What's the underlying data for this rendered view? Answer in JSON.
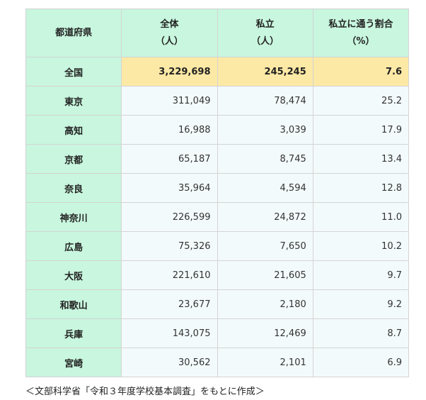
{
  "headers": [
    {
      "l1": "都道府県",
      "l2": ""
    },
    {
      "l1": "全体",
      "l2": "（人）"
    },
    {
      "l1": "私立",
      "l2": "（人）"
    },
    {
      "l1": "私立に通う割合",
      "l2": "（%）"
    }
  ],
  "national": {
    "name": "全国",
    "total": "3,229,698",
    "private": "245,245",
    "ratio": "7.6"
  },
  "rows": [
    {
      "name": "東京",
      "total": "311,049",
      "private": "78,474",
      "ratio": "25.2"
    },
    {
      "name": "高知",
      "total": "16,988",
      "private": "3,039",
      "ratio": "17.9"
    },
    {
      "name": "京都",
      "total": "65,187",
      "private": "8,745",
      "ratio": "13.4"
    },
    {
      "name": "奈良",
      "total": "35,964",
      "private": "4,594",
      "ratio": "12.8"
    },
    {
      "name": "神奈川",
      "total": "226,599",
      "private": "24,872",
      "ratio": "11.0"
    },
    {
      "name": "広島",
      "total": "75,326",
      "private": "7,650",
      "ratio": "10.2"
    },
    {
      "name": "大阪",
      "total": "221,610",
      "private": "21,605",
      "ratio": "9.7"
    },
    {
      "name": "和歌山",
      "total": "23,677",
      "private": "2,180",
      "ratio": "9.2"
    },
    {
      "name": "兵庫",
      "total": "143,075",
      "private": "12,469",
      "ratio": "8.7"
    },
    {
      "name": "宮崎",
      "total": "30,562",
      "private": "2,101",
      "ratio": "6.9"
    }
  ],
  "caption": "＜文部科学省「令和３年度学校基本調査」をもとに作成＞",
  "colors": {
    "header": "#c8f6de",
    "national": "#fde9a6",
    "cell": "#f3fafb"
  }
}
